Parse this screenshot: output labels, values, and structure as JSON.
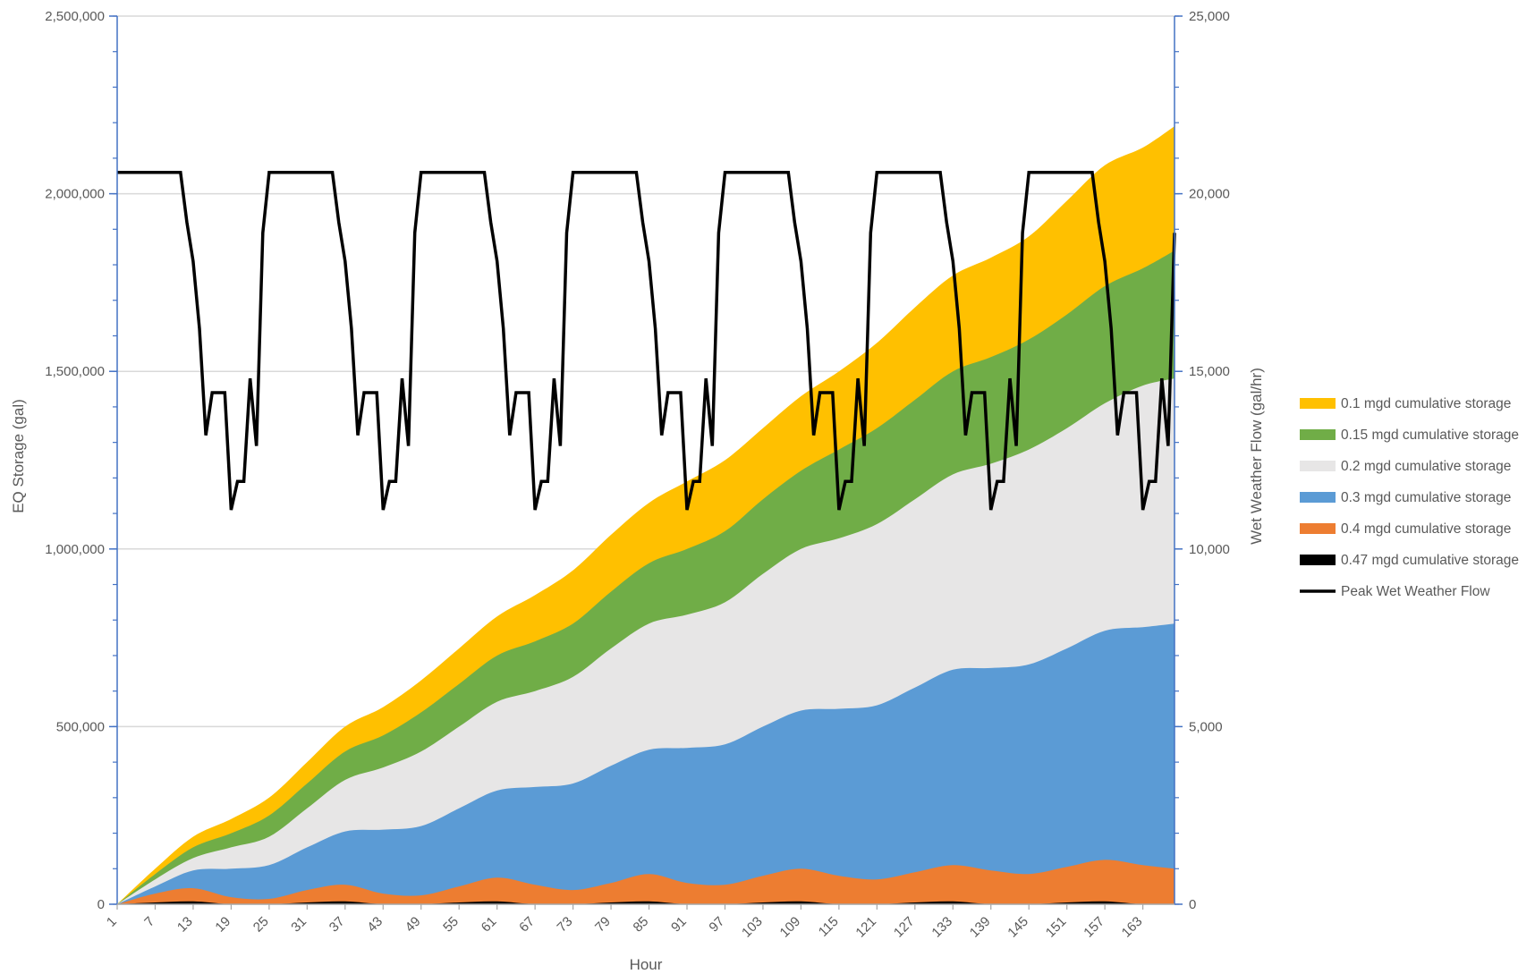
{
  "chart_data": {
    "type": "area",
    "xlabel": "Hour",
    "ylabel": "EQ Storage (gal)",
    "y2label": "Wet Weather Flow (gal/hr)",
    "xlim": [
      1,
      168
    ],
    "ylim": [
      0,
      2500000
    ],
    "y2lim": [
      0,
      25000
    ],
    "y_ticks": [
      0,
      500000,
      1000000,
      1500000,
      2000000,
      2500000
    ],
    "y_tick_labels": [
      "0",
      "500,000",
      "1,000,000",
      "1,500,000",
      "2,000,000",
      "2,500,000"
    ],
    "y2_ticks": [
      0,
      5000,
      10000,
      15000,
      20000,
      25000
    ],
    "y2_tick_labels": [
      "0",
      "5,000",
      "10,000",
      "15,000",
      "20,000",
      "25,000"
    ],
    "x_tick_labels": [
      "1",
      "7",
      "13",
      "19",
      "25",
      "31",
      "37",
      "43",
      "49",
      "55",
      "61",
      "67",
      "73",
      "79",
      "85",
      "91",
      "97",
      "103",
      "109",
      "115",
      "121",
      "127",
      "133",
      "139",
      "145",
      "151",
      "157",
      "163"
    ],
    "grid": "horizontal",
    "legend_position": "right",
    "colors": {
      "mgd_0_1": "#FFC000",
      "mgd_0_15": "#70AD47",
      "mgd_0_2": "#E7E6E6",
      "mgd_0_3": "#5B9BD5",
      "mgd_0_4": "#ED7D31",
      "mgd_0_47": "#000000",
      "peak": "#000000",
      "axis": "#4472C4",
      "grid": "#D9D9D9"
    },
    "storage_series_x": [
      1,
      7,
      13,
      19,
      25,
      31,
      37,
      43,
      49,
      55,
      61,
      67,
      73,
      79,
      85,
      91,
      97,
      103,
      109,
      115,
      121,
      127,
      133,
      139,
      145,
      151,
      157,
      163,
      168
    ],
    "series": [
      {
        "name": "0.1 mgd cumulative storage",
        "color_key": "mgd_0_1",
        "values": [
          0,
          100000,
          190000,
          240000,
          300000,
          400000,
          500000,
          555000,
          630000,
          720000,
          810000,
          870000,
          940000,
          1040000,
          1130000,
          1190000,
          1250000,
          1340000,
          1430000,
          1500000,
          1580000,
          1680000,
          1770000,
          1820000,
          1880000,
          1980000,
          2080000,
          2130000,
          2190000
        ]
      },
      {
        "name": "0.15 mgd cumulative storage",
        "color_key": "mgd_0_15",
        "values": [
          0,
          85000,
          160000,
          200000,
          250000,
          340000,
          430000,
          475000,
          540000,
          620000,
          700000,
          740000,
          790000,
          880000,
          960000,
          1000000,
          1050000,
          1140000,
          1220000,
          1280000,
          1340000,
          1420000,
          1500000,
          1540000,
          1590000,
          1660000,
          1740000,
          1790000,
          1840000
        ]
      },
      {
        "name": "0.2 mgd cumulative storage",
        "color_key": "mgd_0_2",
        "values": [
          0,
          70000,
          130000,
          160000,
          190000,
          270000,
          350000,
          385000,
          430000,
          500000,
          570000,
          600000,
          640000,
          720000,
          790000,
          815000,
          850000,
          930000,
          1000000,
          1030000,
          1070000,
          1140000,
          1210000,
          1240000,
          1280000,
          1340000,
          1410000,
          1460000,
          1480000
        ]
      },
      {
        "name": "0.3 mgd cumulative storage",
        "color_key": "mgd_0_3",
        "values": [
          0,
          50000,
          95000,
          100000,
          110000,
          160000,
          205000,
          210000,
          220000,
          270000,
          320000,
          330000,
          340000,
          390000,
          435000,
          440000,
          450000,
          500000,
          545000,
          550000,
          560000,
          610000,
          660000,
          665000,
          675000,
          720000,
          770000,
          780000,
          790000
        ]
      },
      {
        "name": "0.4 mgd cumulative storage",
        "color_key": "mgd_0_4",
        "values": [
          0,
          30000,
          45000,
          20000,
          15000,
          40000,
          55000,
          30000,
          25000,
          50000,
          75000,
          55000,
          40000,
          60000,
          85000,
          60000,
          55000,
          80000,
          100000,
          80000,
          70000,
          90000,
          110000,
          95000,
          85000,
          105000,
          125000,
          110000,
          100000
        ]
      },
      {
        "name": "0.47 mgd cumulative storage",
        "color_key": "mgd_0_47",
        "values": [
          0,
          5000,
          8000,
          0,
          0,
          5000,
          8000,
          0,
          0,
          5000,
          8000,
          0,
          0,
          5000,
          8000,
          0,
          0,
          5000,
          8000,
          0,
          0,
          5000,
          8000,
          0,
          0,
          5000,
          8000,
          0,
          0
        ]
      }
    ],
    "peak_flow": {
      "name": "Peak Wet Weather Flow",
      "color_key": "peak",
      "axis": "secondary",
      "daily_profile_hours_1_to_24": [
        20600,
        20600,
        20600,
        20600,
        20600,
        20600,
        20600,
        20600,
        20600,
        20600,
        20600,
        19200,
        18100,
        16200,
        13200,
        14400,
        14400,
        14400,
        11100,
        11900,
        11900,
        14800,
        12900,
        18900
      ],
      "hour_25_onward_prefix": [
        14200,
        16200
      ],
      "days": 7
    }
  }
}
